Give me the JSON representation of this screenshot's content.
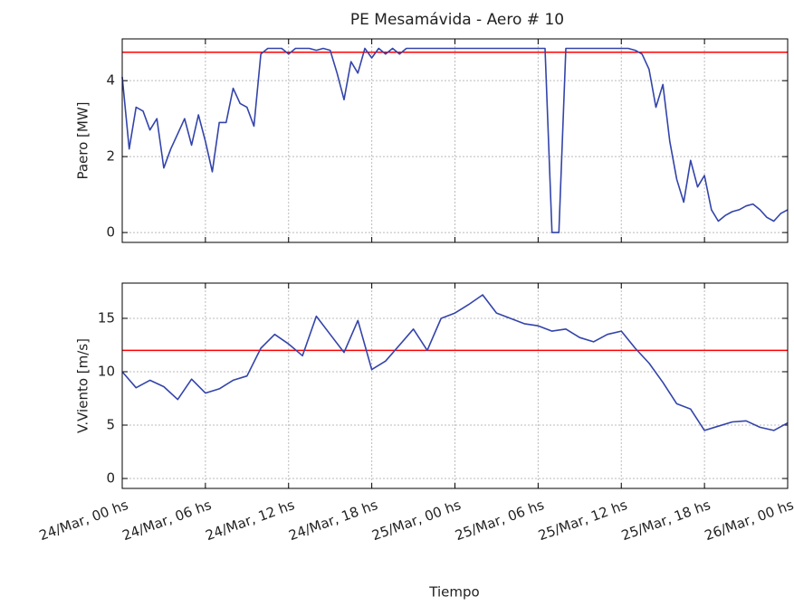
{
  "title": "PE Mesamávida - Aero # 10",
  "chart_data": [
    {
      "type": "line",
      "ylabel": "Paero [MW]",
      "x": [
        0,
        0.5,
        1,
        1.5,
        2,
        2.5,
        3,
        3.5,
        4,
        4.5,
        5,
        5.5,
        6,
        6.5,
        7,
        7.5,
        8,
        8.5,
        9,
        9.5,
        10,
        10.5,
        11,
        11.5,
        12,
        12.5,
        13,
        13.5,
        14,
        14.5,
        15,
        15.5,
        16,
        16.5,
        17,
        17.5,
        18,
        18.5,
        19,
        19.5,
        20,
        20.5,
        21,
        21.5,
        22,
        22.5,
        23,
        23.5,
        24,
        24.5,
        25,
        25.5,
        26,
        26.5,
        27,
        27.5,
        28,
        28.5,
        29,
        29.5,
        30,
        30.5,
        31,
        31.5,
        32,
        32.5,
        33,
        33.5,
        34,
        34.5,
        35,
        35.5,
        36,
        36.5,
        37,
        37.5,
        38,
        38.5,
        39,
        39.5,
        40,
        40.5,
        41,
        41.5,
        42,
        42.5,
        43,
        43.5,
        44,
        44.5,
        45,
        45.5,
        46,
        46.5,
        47,
        47.5,
        48
      ],
      "series": [
        {
          "color": "#3344aa",
          "values": [
            4.1,
            2.2,
            3.3,
            3.2,
            2.7,
            3.0,
            1.7,
            2.2,
            2.6,
            3.0,
            2.3,
            3.1,
            2.4,
            1.6,
            2.9,
            2.9,
            3.8,
            3.4,
            3.3,
            2.8,
            4.7,
            4.85,
            4.85,
            4.85,
            4.7,
            4.85,
            4.85,
            4.85,
            4.8,
            4.85,
            4.8,
            4.2,
            3.5,
            4.5,
            4.2,
            4.85,
            4.6,
            4.85,
            4.7,
            4.85,
            4.7,
            4.85,
            4.85,
            4.85,
            4.85,
            4.85,
            4.85,
            4.85,
            4.85,
            4.85,
            4.85,
            4.85,
            4.85,
            4.85,
            4.85,
            4.85,
            4.85,
            4.85,
            4.85,
            4.85,
            4.85,
            4.85,
            0,
            0,
            4.85,
            4.85,
            4.85,
            4.85,
            4.85,
            4.85,
            4.85,
            4.85,
            4.85,
            4.85,
            4.8,
            4.7,
            4.3,
            3.3,
            3.9,
            2.4,
            1.4,
            0.8,
            1.9,
            1.2,
            1.5,
            0.6,
            0.3,
            0.45,
            0.55,
            0.6,
            0.7,
            0.75,
            0.6,
            0.4,
            0.3,
            0.5,
            0.6
          ]
        }
      ],
      "hline": {
        "value": 4.75,
        "color": "#ff0000"
      },
      "xlim": [
        0,
        48
      ],
      "ylim": [
        -0.26,
        5.1
      ],
      "yticks": [
        0,
        2,
        4
      ],
      "grid": true
    },
    {
      "type": "line",
      "ylabel": "V.Viento [m/s]",
      "xlabel": "Tiempo",
      "x": [
        0,
        1,
        2,
        3,
        4,
        5,
        6,
        7,
        8,
        9,
        10,
        11,
        12,
        13,
        14,
        15,
        16,
        17,
        18,
        19,
        20,
        21,
        22,
        23,
        24,
        25,
        26,
        27,
        28,
        29,
        30,
        31,
        32,
        33,
        34,
        35,
        36,
        37,
        38,
        39,
        40,
        41,
        42,
        43,
        44,
        45,
        46,
        47,
        48
      ],
      "series": [
        {
          "color": "#3344aa",
          "values": [
            10.0,
            8.5,
            9.2,
            8.6,
            7.4,
            9.3,
            8.0,
            8.4,
            9.2,
            9.6,
            12.2,
            13.5,
            12.6,
            11.5,
            15.2,
            13.5,
            11.8,
            14.8,
            10.2,
            11.0,
            12.5,
            14.0,
            12.0,
            15.0,
            15.5,
            16.3,
            17.2,
            15.5,
            15.0,
            14.5,
            14.3,
            13.8,
            14.0,
            13.2,
            12.8,
            13.5,
            13.8,
            12.2,
            10.8,
            9.0,
            7.0,
            6.5,
            4.5,
            4.9,
            5.3,
            5.4,
            4.8,
            4.5,
            5.2
          ]
        }
      ],
      "hline": {
        "value": 12,
        "color": "#ff0000"
      },
      "xlim": [
        0,
        48
      ],
      "ylim": [
        -0.93,
        18.3
      ],
      "yticks": [
        0,
        5,
        10,
        15
      ],
      "grid": true,
      "xticks": [
        {
          "value": 0,
          "label": "24/Mar, 00 hs"
        },
        {
          "value": 6,
          "label": "24/Mar, 06 hs"
        },
        {
          "value": 12,
          "label": "24/Mar, 12 hs"
        },
        {
          "value": 18,
          "label": "24/Mar, 18 hs"
        },
        {
          "value": 24,
          "label": "25/Mar, 00 hs"
        },
        {
          "value": 30,
          "label": "25/Mar, 06 hs"
        },
        {
          "value": 36,
          "label": "25/Mar, 12 hs"
        },
        {
          "value": 42,
          "label": "25/Mar, 18 hs"
        },
        {
          "value": 48,
          "label": "26/Mar, 00 hs"
        }
      ]
    }
  ]
}
